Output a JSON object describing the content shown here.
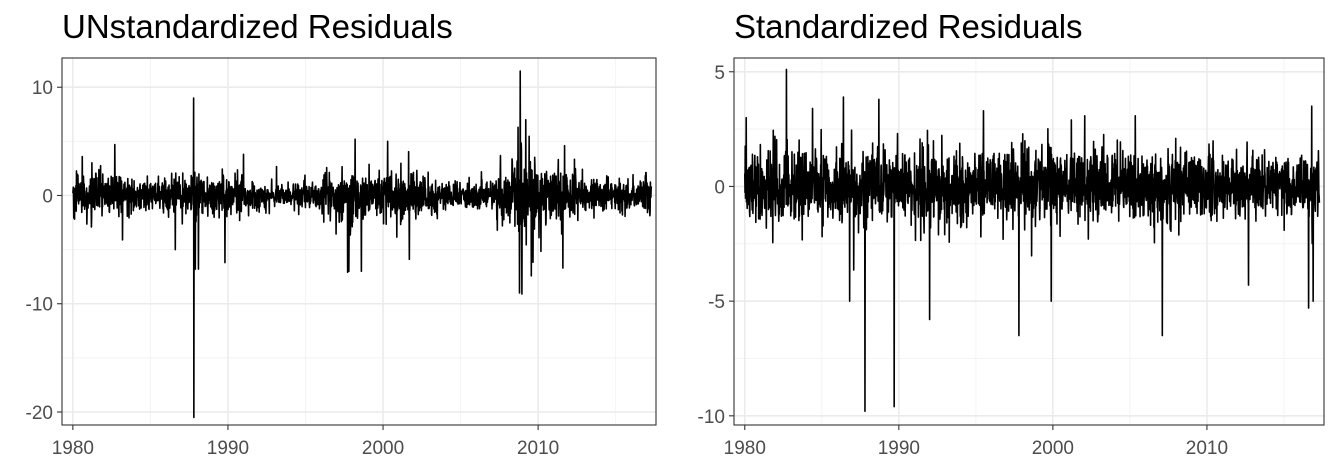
{
  "chart_data": [
    {
      "type": "line",
      "title": "UNstandardized Residuals",
      "xlabel": "",
      "ylabel": "",
      "xlim": [
        1979.3,
        2017.6
      ],
      "ylim": [
        -21.2,
        12.7
      ],
      "x_ticks": [
        {
          "value": 1980,
          "label": "1980"
        },
        {
          "value": 1990,
          "label": "1990"
        },
        {
          "value": 2000,
          "label": "2000"
        },
        {
          "value": 2010,
          "label": "2010"
        }
      ],
      "y_ticks": [
        {
          "value": 10,
          "label": "10"
        },
        {
          "value": 0,
          "label": "0"
        },
        {
          "value": -10,
          "label": "-10"
        },
        {
          "value": -20,
          "label": "-20"
        }
      ],
      "grid": true,
      "series": [
        {
          "color": "#000000",
          "x_range": [
            1980.0,
            2017.3
          ],
          "baseline_amplitude": 1.0,
          "volatility_regimes": [
            {
              "start": 1980.0,
              "end": 1983.0,
              "amplitude": 1.3
            },
            {
              "start": 1983.0,
              "end": 1987.5,
              "amplitude": 1.0
            },
            {
              "start": 1987.5,
              "end": 1991.0,
              "amplitude": 1.3
            },
            {
              "start": 1991.0,
              "end": 1996.0,
              "amplitude": 0.75
            },
            {
              "start": 1996.0,
              "end": 2003.5,
              "amplitude": 1.5
            },
            {
              "start": 2003.5,
              "end": 2007.3,
              "amplitude": 0.8
            },
            {
              "start": 2007.3,
              "end": 2008.6,
              "amplitude": 1.5
            },
            {
              "start": 2008.6,
              "end": 2009.8,
              "amplitude": 3.2
            },
            {
              "start": 2009.8,
              "end": 2012.5,
              "amplitude": 1.6
            },
            {
              "start": 2012.5,
              "end": 2017.3,
              "amplitude": 1.0
            }
          ],
          "spikes": [
            {
              "x": 1980.6,
              "y": 3.6
            },
            {
              "x": 1982.7,
              "y": 4.7
            },
            {
              "x": 1983.2,
              "y": -4.1
            },
            {
              "x": 1986.6,
              "y": -5.0
            },
            {
              "x": 1987.79,
              "y": 9.0
            },
            {
              "x": 1987.8,
              "y": -20.5
            },
            {
              "x": 1987.9,
              "y": -6.8
            },
            {
              "x": 1988.1,
              "y": -6.8
            },
            {
              "x": 1989.8,
              "y": -6.2
            },
            {
              "x": 1991.0,
              "y": 3.8
            },
            {
              "x": 1997.8,
              "y": -7.0
            },
            {
              "x": 1998.6,
              "y": -7.0
            },
            {
              "x": 1998.2,
              "y": 5.2
            },
            {
              "x": 2000.3,
              "y": 5.0
            },
            {
              "x": 2001.7,
              "y": -5.9
            },
            {
              "x": 2008.7,
              "y": 6.3
            },
            {
              "x": 2008.8,
              "y": -9.0
            },
            {
              "x": 2008.85,
              "y": 11.5
            },
            {
              "x": 2008.95,
              "y": -9.1
            },
            {
              "x": 2009.2,
              "y": 7.0
            },
            {
              "x": 2011.6,
              "y": -6.7
            },
            {
              "x": 2011.7,
              "y": 4.6
            }
          ]
        }
      ]
    },
    {
      "type": "line",
      "title": "Standardized Residuals",
      "xlabel": "",
      "ylabel": "",
      "xlim": [
        1979.3,
        2017.6
      ],
      "ylim": [
        -10.4,
        5.6
      ],
      "x_ticks": [
        {
          "value": 1980,
          "label": "1980"
        },
        {
          "value": 1990,
          "label": "1990"
        },
        {
          "value": 2000,
          "label": "2000"
        },
        {
          "value": 2010,
          "label": "2010"
        }
      ],
      "y_ticks": [
        {
          "value": 5,
          "label": "5"
        },
        {
          "value": 0,
          "label": "0"
        },
        {
          "value": -5,
          "label": "-5"
        },
        {
          "value": -10,
          "label": "-10"
        }
      ],
      "grid": true,
      "series": [
        {
          "color": "#000000",
          "x_range": [
            1980.0,
            2017.3
          ],
          "baseline_amplitude": 1.0,
          "volatility_regimes": [],
          "spikes": [
            {
              "x": 1980.1,
              "y": 3.0
            },
            {
              "x": 1982.7,
              "y": 5.1
            },
            {
              "x": 1984.4,
              "y": 3.4
            },
            {
              "x": 1986.4,
              "y": 3.9
            },
            {
              "x": 1986.8,
              "y": -5.0
            },
            {
              "x": 1987.8,
              "y": -9.8
            },
            {
              "x": 1988.7,
              "y": 3.8
            },
            {
              "x": 1989.7,
              "y": -9.6
            },
            {
              "x": 1992.0,
              "y": -5.8
            },
            {
              "x": 1995.5,
              "y": 3.3
            },
            {
              "x": 1997.8,
              "y": -6.5
            },
            {
              "x": 1999.9,
              "y": -5.0
            },
            {
              "x": 2001.2,
              "y": 2.9
            },
            {
              "x": 2007.1,
              "y": -6.5
            },
            {
              "x": 2012.7,
              "y": -4.3
            },
            {
              "x": 2016.6,
              "y": -5.3
            },
            {
              "x": 2016.8,
              "y": 3.5
            },
            {
              "x": 2016.9,
              "y": -5.0
            }
          ]
        }
      ]
    }
  ]
}
